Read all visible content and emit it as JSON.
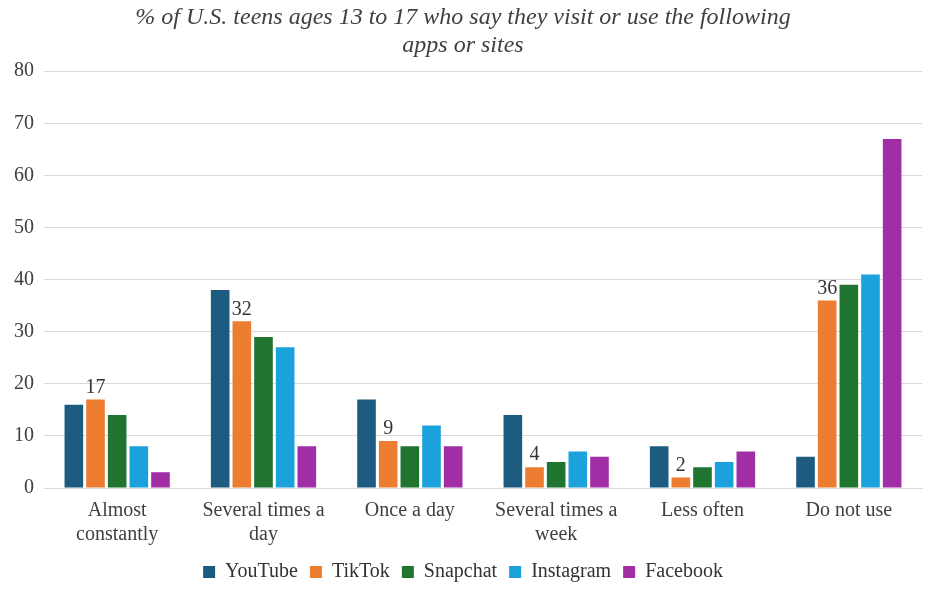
{
  "chart_data": {
    "type": "bar",
    "title": "% of U.S. teens ages 13 to 17 who say they visit or use the following apps or sites",
    "categories": [
      "Almost constantly",
      "Several times a day",
      "Once a day",
      "Several times a week",
      "Less often",
      "Do not use"
    ],
    "series": [
      {
        "name": "YouTube",
        "color": "#1d5c80",
        "values": [
          16,
          38,
          17,
          14,
          8,
          6
        ]
      },
      {
        "name": "TikTok",
        "color": "#ed7d31",
        "values": [
          17,
          32,
          9,
          4,
          2,
          36
        ],
        "data_labels": true
      },
      {
        "name": "Snapchat",
        "color": "#1f7530",
        "values": [
          14,
          29,
          8,
          5,
          4,
          39
        ]
      },
      {
        "name": "Instagram",
        "color": "#1ba1dc",
        "values": [
          8,
          27,
          12,
          7,
          5,
          41
        ]
      },
      {
        "name": "Facebook",
        "color": "#a22ea5",
        "values": [
          3,
          8,
          8,
          6,
          7,
          67
        ]
      }
    ],
    "ylim": [
      0,
      80
    ],
    "yticks": [
      0,
      10,
      20,
      30,
      40,
      50,
      60,
      70,
      80
    ],
    "grid": true,
    "legend": "bottom"
  }
}
